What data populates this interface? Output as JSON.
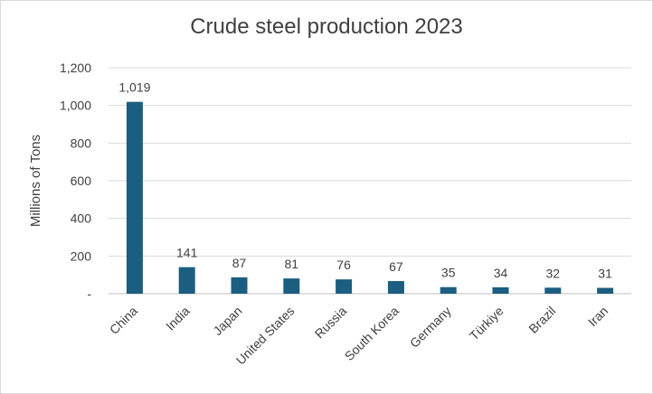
{
  "chart_data": {
    "type": "bar",
    "title": "Crude steel production 2023",
    "xlabel": "",
    "ylabel": "Millions of Tons",
    "categories": [
      "China",
      "India",
      "Japan",
      "United States",
      "Russia",
      "South Korea",
      "Germany",
      "Türkiye",
      "Brazil",
      "Iran"
    ],
    "values": [
      1019,
      141,
      87,
      81,
      76,
      67,
      35,
      34,
      32,
      31
    ],
    "data_labels": [
      "1,019",
      "141",
      "87",
      "81",
      "76",
      "67",
      "35",
      "34",
      "32",
      "31"
    ],
    "ylim": [
      0,
      1200
    ],
    "yticks": [
      0,
      200,
      400,
      600,
      800,
      1000,
      1200
    ],
    "ytick_labels": [
      "-",
      "200",
      "400",
      "600",
      "800",
      "1,000",
      "1,200"
    ],
    "grid": true,
    "legend": "none",
    "bar_color": "#1b5e80",
    "grid_color": "#d9d9d9",
    "axis_color": "#bfbfbf"
  }
}
